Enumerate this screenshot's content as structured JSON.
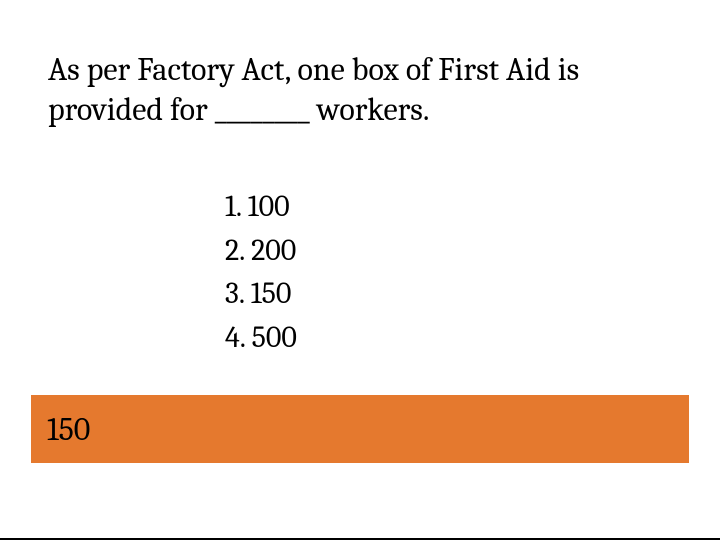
{
  "question": {
    "text": "As per Factory Act, one box of First Aid is provided for ________ workers.",
    "fontsize": 32,
    "color": "#000000"
  },
  "options": [
    {
      "number": "1.",
      "value": "100"
    },
    {
      "number": "2.",
      "value": "200"
    },
    {
      "number": "3.",
      "value": "150"
    },
    {
      "number": "4.",
      "value": "500"
    }
  ],
  "options_style": {
    "fontsize": 30,
    "color": "#000000"
  },
  "answer": {
    "text": "150",
    "fontsize": 32,
    "color": "#000000",
    "background_color": "#e5792e"
  },
  "background_color": "#ffffff"
}
